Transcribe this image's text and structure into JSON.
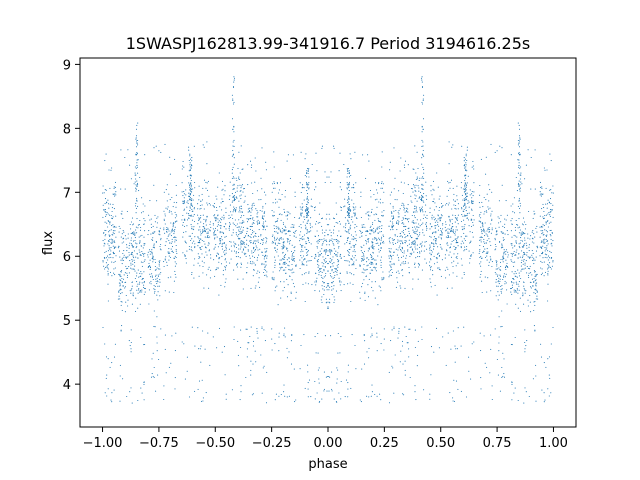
{
  "chart_data": {
    "type": "scatter",
    "title": "1SWASPJ162813.99-341916.7 Period 3194616.25s",
    "xlabel": "phase",
    "ylabel": "flux",
    "xlim": [
      -1.1,
      1.1
    ],
    "ylim": [
      3.33,
      9.1
    ],
    "xticks": [
      -1.0,
      -0.75,
      -0.5,
      -0.25,
      0.0,
      0.25,
      0.5,
      0.75,
      1.0
    ],
    "xtick_labels": [
      "−1.00",
      "−0.75",
      "−0.50",
      "−0.25",
      "0.00",
      "0.25",
      "0.50",
      "0.75",
      "1.00"
    ],
    "yticks": [
      4,
      5,
      6,
      7,
      8,
      9
    ],
    "ytick_labels": [
      "4",
      "5",
      "6",
      "7",
      "8",
      "9"
    ],
    "grid": false,
    "marker_color": "#1f77b4",
    "series": [
      {
        "phase_range": [
          -1.0,
          1.0
        ],
        "symmetric_about_zero": true,
        "points_per_half": 2200,
        "flux_baseline": 6.15,
        "clusters": [
          {
            "phase": 0.03,
            "flux": 6.0
          },
          {
            "phase": 0.1,
            "flux": 6.25
          },
          {
            "phase": 0.17,
            "flux": 6.1
          },
          {
            "phase": 0.22,
            "flux": 6.3
          },
          {
            "phase": 0.3,
            "flux": 6.25
          },
          {
            "phase": 0.36,
            "flux": 6.35
          },
          {
            "phase": 0.41,
            "flux": 6.5
          },
          {
            "phase": 0.48,
            "flux": 6.3
          },
          {
            "phase": 0.55,
            "flux": 6.4
          },
          {
            "phase": 0.62,
            "flux": 6.55
          },
          {
            "phase": 0.7,
            "flux": 6.3
          },
          {
            "phase": 0.77,
            "flux": 6.0
          },
          {
            "phase": 0.84,
            "flux": 6.0
          },
          {
            "phase": 0.9,
            "flux": 5.9
          },
          {
            "phase": 0.97,
            "flux": 6.3
          }
        ],
        "spikes": [
          {
            "phase": 0.42,
            "flux_max": 8.85
          },
          {
            "phase": 0.85,
            "flux_max": 8.1
          },
          {
            "phase": 0.61,
            "flux_max": 7.6
          },
          {
            "phase": 0.09,
            "flux_max": 7.4
          }
        ]
      }
    ]
  }
}
